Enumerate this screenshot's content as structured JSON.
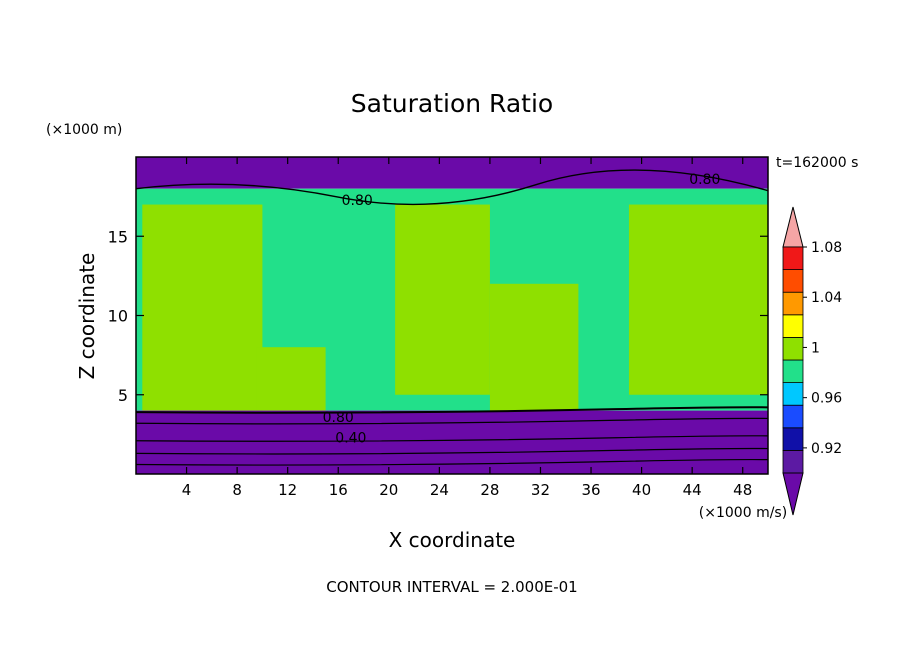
{
  "chart_data": {
    "type": "heatmap",
    "title": "Saturation Ratio",
    "time_label": "t=162000 s",
    "xlabel": "X coordinate",
    "ylabel": "Z coordinate",
    "x_unit": "(×1000 m/s)",
    "y_unit": "(×1000 m)",
    "xlim": [
      0,
      50
    ],
    "ylim": [
      0,
      20
    ],
    "x_ticks": [
      4,
      8,
      12,
      16,
      20,
      24,
      28,
      32,
      36,
      40,
      44,
      48
    ],
    "y_ticks": [
      5,
      10,
      15
    ],
    "footer": "CONTOUR INTERVAL = 2.000E-01",
    "colorbar": {
      "levels": [
        0.9,
        0.92,
        0.94,
        0.96,
        0.98,
        1.0,
        1.02,
        1.04,
        1.06,
        1.08,
        1.1
      ],
      "labels": [
        "0.92",
        "0.96",
        "1",
        "1.04",
        "1.08"
      ],
      "label_values": [
        0.92,
        0.96,
        1.0,
        1.04,
        1.08
      ],
      "colors": [
        "#5c1aa3",
        "#1010a8",
        "#1a4cff",
        "#00c8ff",
        "#22e08a",
        "#8fe000",
        "#ffff00",
        "#ff9900",
        "#ff4d00",
        "#f01818",
        "#f5a5a5"
      ],
      "below_color": "#6a0aa8"
    },
    "contour_labels": [
      {
        "text": "0.80",
        "x": 16,
        "z": 3.6
      },
      {
        "text": "0.40",
        "x": 17,
        "z": 2.3
      },
      {
        "text": "0.80",
        "x": 17.5,
        "z": 17.3
      },
      {
        "text": "0.80",
        "x": 45,
        "z": 18.6
      }
    ],
    "regions": [
      {
        "name": "upper-dry-layer",
        "x": [
          0,
          50
        ],
        "z": [
          18,
          20
        ],
        "value": 0.6
      },
      {
        "name": "mid-troposphere-main",
        "x": [
          0,
          50
        ],
        "z": [
          4,
          18
        ],
        "value": 0.99
      },
      {
        "name": "supersaturated-plume-1",
        "x": [
          0.5,
          10
        ],
        "z": [
          4,
          17
        ],
        "value": 1.01
      },
      {
        "name": "supersaturated-plume-2",
        "x": [
          9.5,
          15
        ],
        "z": [
          4,
          8
        ],
        "value": 1.01
      },
      {
        "name": "supersaturated-plume-3",
        "x": [
          20.5,
          28
        ],
        "z": [
          5,
          17
        ],
        "value": 1.01
      },
      {
        "name": "supersaturated-plume-4",
        "x": [
          28,
          35
        ],
        "z": [
          4,
          12
        ],
        "value": 1.01
      },
      {
        "name": "supersaturated-plume-5",
        "x": [
          39,
          50
        ],
        "z": [
          5,
          17
        ],
        "value": 1.01
      },
      {
        "name": "lower-dry-layer",
        "x": [
          0,
          50
        ],
        "z": [
          0,
          4
        ],
        "value": 0.5
      }
    ]
  }
}
